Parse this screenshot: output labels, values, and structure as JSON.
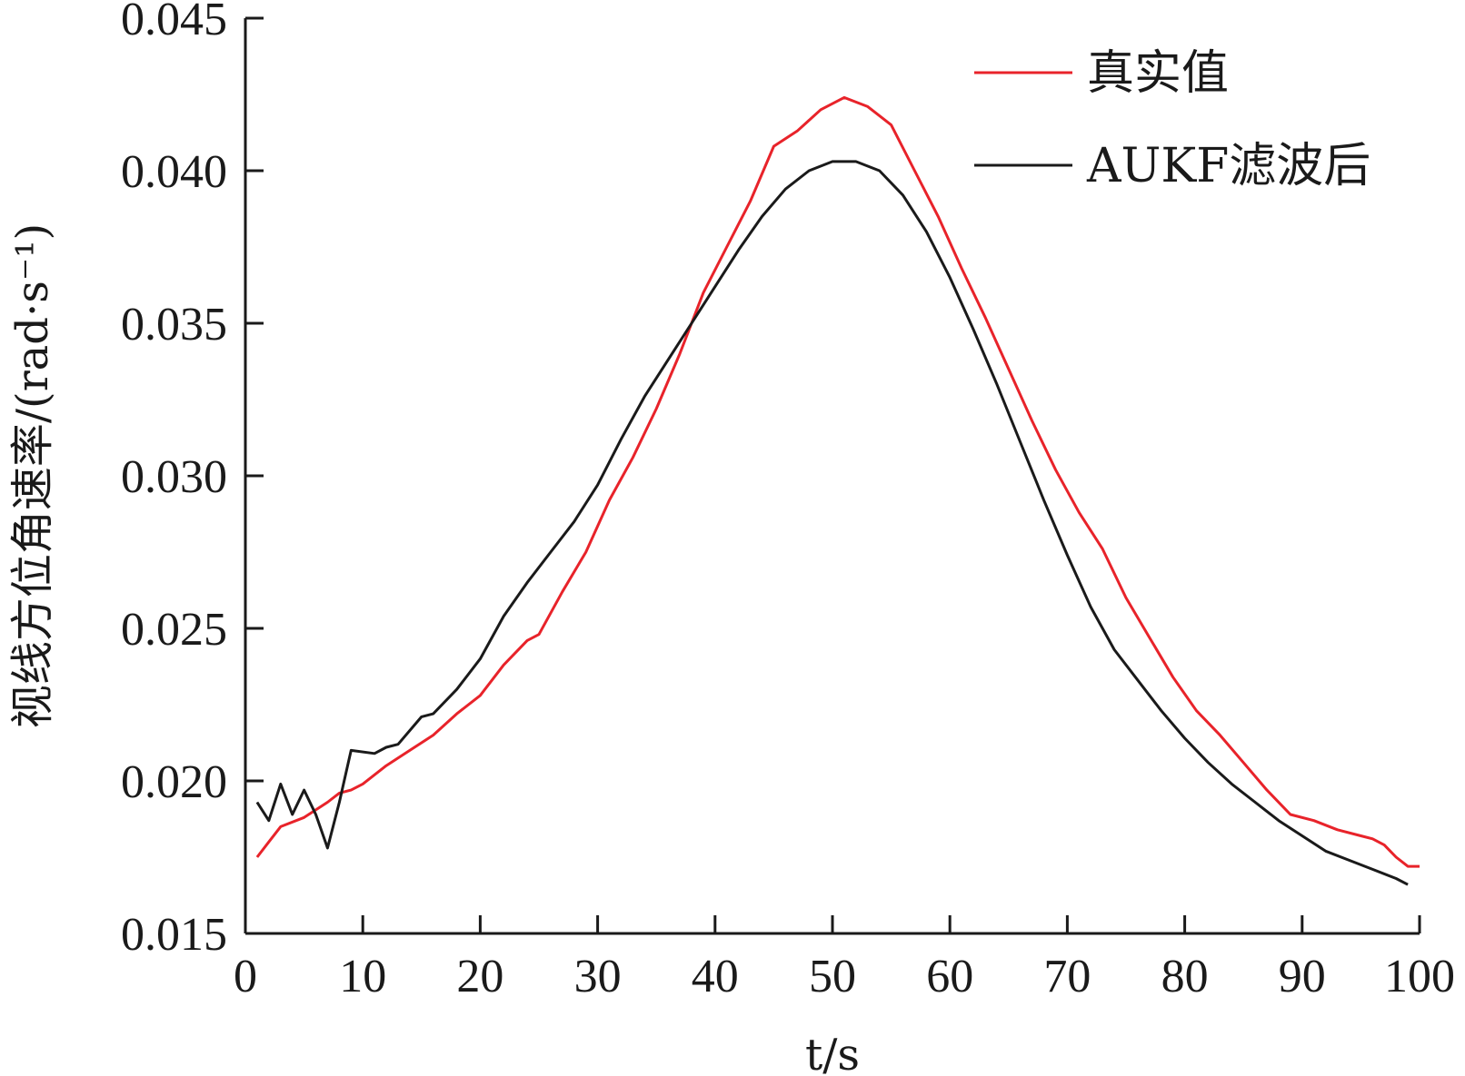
{
  "chart_data": {
    "type": "line",
    "title": "",
    "xlabel": "t/s",
    "ylabel": "视线方位角速率/(rad·s⁻¹)",
    "xlim": [
      0,
      100
    ],
    "ylim": [
      0.015,
      0.045
    ],
    "grid": false,
    "legend_position": "top-right",
    "x_ticks": [
      "0",
      "10",
      "20",
      "30",
      "40",
      "50",
      "60",
      "70",
      "80",
      "90",
      "100"
    ],
    "y_ticks": [
      "0.015",
      "0.020",
      "0.025",
      "0.030",
      "0.035",
      "0.040",
      "0.045"
    ],
    "series": [
      {
        "name": "真实值",
        "color": "#e8232a",
        "points": [
          [
            1,
            0.0175
          ],
          [
            2,
            0.018
          ],
          [
            3,
            0.0185
          ],
          [
            5,
            0.0188
          ],
          [
            7,
            0.0193
          ],
          [
            8,
            0.0196
          ],
          [
            9,
            0.0197
          ],
          [
            10,
            0.0199
          ],
          [
            12,
            0.0205
          ],
          [
            14,
            0.021
          ],
          [
            16,
            0.0215
          ],
          [
            18,
            0.0222
          ],
          [
            20,
            0.0228
          ],
          [
            22,
            0.0238
          ],
          [
            24,
            0.0246
          ],
          [
            25,
            0.0248
          ],
          [
            27,
            0.0262
          ],
          [
            29,
            0.0275
          ],
          [
            31,
            0.0292
          ],
          [
            33,
            0.0306
          ],
          [
            35,
            0.0322
          ],
          [
            37,
            0.034
          ],
          [
            39,
            0.036
          ],
          [
            41,
            0.0375
          ],
          [
            43,
            0.039
          ],
          [
            45,
            0.0408
          ],
          [
            47,
            0.0413
          ],
          [
            49,
            0.042
          ],
          [
            51,
            0.0424
          ],
          [
            53,
            0.0421
          ],
          [
            55,
            0.0415
          ],
          [
            57,
            0.04
          ],
          [
            59,
            0.0385
          ],
          [
            61,
            0.0368
          ],
          [
            63,
            0.0352
          ],
          [
            65,
            0.0335
          ],
          [
            67,
            0.0318
          ],
          [
            69,
            0.0302
          ],
          [
            71,
            0.0288
          ],
          [
            73,
            0.0276
          ],
          [
            75,
            0.026
          ],
          [
            77,
            0.0247
          ],
          [
            79,
            0.0234
          ],
          [
            81,
            0.0223
          ],
          [
            83,
            0.0215
          ],
          [
            85,
            0.0206
          ],
          [
            87,
            0.0197
          ],
          [
            89,
            0.0189
          ],
          [
            91,
            0.0187
          ],
          [
            93,
            0.0184
          ],
          [
            95,
            0.0182
          ],
          [
            96,
            0.0181
          ],
          [
            97,
            0.0179
          ],
          [
            98,
            0.0175
          ],
          [
            99,
            0.0172
          ],
          [
            100,
            0.0172
          ]
        ]
      },
      {
        "name": "AUKF滤波后",
        "color": "#1a1a1a",
        "points": [
          [
            1,
            0.0193
          ],
          [
            2,
            0.0187
          ],
          [
            3,
            0.0199
          ],
          [
            4,
            0.0189
          ],
          [
            5,
            0.0197
          ],
          [
            6,
            0.0189
          ],
          [
            7,
            0.0178
          ],
          [
            8,
            0.0193
          ],
          [
            9,
            0.021
          ],
          [
            11,
            0.0209
          ],
          [
            12,
            0.0211
          ],
          [
            13,
            0.0212
          ],
          [
            15,
            0.0221
          ],
          [
            16,
            0.0222
          ],
          [
            18,
            0.023
          ],
          [
            20,
            0.024
          ],
          [
            22,
            0.0254
          ],
          [
            24,
            0.0265
          ],
          [
            26,
            0.0275
          ],
          [
            28,
            0.0285
          ],
          [
            30,
            0.0297
          ],
          [
            32,
            0.0312
          ],
          [
            34,
            0.0326
          ],
          [
            36,
            0.0338
          ],
          [
            38,
            0.035
          ],
          [
            40,
            0.0362
          ],
          [
            42,
            0.0374
          ],
          [
            44,
            0.0385
          ],
          [
            46,
            0.0394
          ],
          [
            48,
            0.04
          ],
          [
            50,
            0.0403
          ],
          [
            52,
            0.0403
          ],
          [
            54,
            0.04
          ],
          [
            56,
            0.0392
          ],
          [
            58,
            0.038
          ],
          [
            60,
            0.0365
          ],
          [
            62,
            0.0348
          ],
          [
            64,
            0.033
          ],
          [
            66,
            0.0311
          ],
          [
            68,
            0.0292
          ],
          [
            70,
            0.0274
          ],
          [
            72,
            0.0257
          ],
          [
            74,
            0.0243
          ],
          [
            76,
            0.0233
          ],
          [
            78,
            0.0223
          ],
          [
            80,
            0.0214
          ],
          [
            82,
            0.0206
          ],
          [
            84,
            0.0199
          ],
          [
            86,
            0.0193
          ],
          [
            88,
            0.0187
          ],
          [
            90,
            0.0182
          ],
          [
            92,
            0.0177
          ],
          [
            94,
            0.0174
          ],
          [
            96,
            0.0171
          ],
          [
            98,
            0.0168
          ],
          [
            99,
            0.0166
          ]
        ]
      }
    ]
  }
}
